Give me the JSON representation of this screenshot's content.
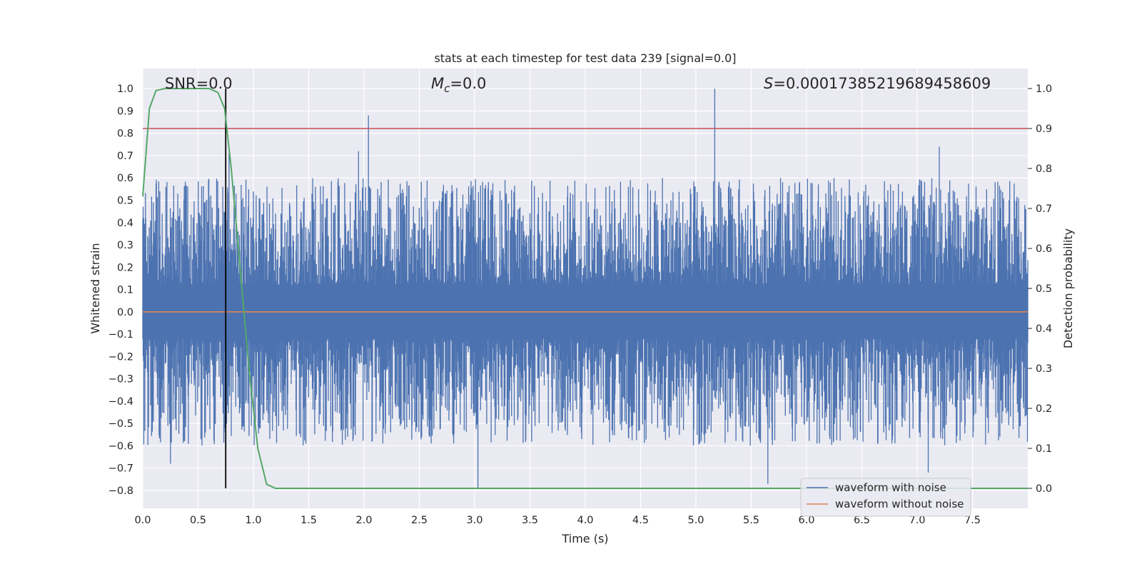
{
  "chart_data": {
    "type": "line",
    "title": "stats at each timestep for test data 239 [signal=0.0]",
    "xlabel": "Time (s)",
    "ylabel_left": "Whitened strain",
    "ylabel_right": "Detection probability",
    "xlim": [
      0.0,
      8.0
    ],
    "ylim_left": [
      -0.88,
      1.09
    ],
    "ylim_right": [
      -0.05,
      1.05
    ],
    "grid": true,
    "x_ticks": [
      "0.0",
      "0.5",
      "1.0",
      "1.5",
      "2.0",
      "2.5",
      "3.0",
      "3.5",
      "4.0",
      "4.5",
      "5.0",
      "5.5",
      "6.0",
      "6.5",
      "7.0",
      "7.5"
    ],
    "y_ticks_left": [
      "1.0",
      "0.9",
      "0.8",
      "0.7",
      "0.6",
      "0.5",
      "0.4",
      "0.3",
      "0.2",
      "0.1",
      "0.0",
      "−0.1",
      "−0.2",
      "−0.3",
      "−0.4",
      "−0.5",
      "−0.6",
      "−0.7",
      "−0.8"
    ],
    "y_ticks_right": [
      "1.0",
      "0.9",
      "0.8",
      "0.7",
      "0.6",
      "0.5",
      "0.4",
      "0.3",
      "0.2",
      "0.1",
      "0.0"
    ],
    "annotations": {
      "snr": "SNR=0.0",
      "mc_symbol": "M",
      "mc_sub": "c",
      "mc_value": "=0.0",
      "s_symbol": "S",
      "s_value": "=0.00017385219689458609"
    },
    "threshold_line": {
      "axis": "right",
      "value": 0.9,
      "color": "#c44e52"
    },
    "marker_line": {
      "x": 0.75,
      "color": "#000000"
    },
    "series": [
      {
        "name": "waveform with noise",
        "axis": "left",
        "color": "#4c72b0",
        "description": "dense noise trace, typical amplitude within about ±0.5 with isolated spikes",
        "notable_peaks": [
          {
            "x": 0.78,
            "y": 0.71
          },
          {
            "x": 1.95,
            "y": 0.72
          },
          {
            "x": 2.04,
            "y": 0.88
          },
          {
            "x": 5.17,
            "y": 1.0
          },
          {
            "x": 7.2,
            "y": 0.74
          },
          {
            "x": 3.03,
            "y": -0.79
          },
          {
            "x": 5.65,
            "y": -0.77
          },
          {
            "x": 7.1,
            "y": -0.72
          },
          {
            "x": 0.25,
            "y": -0.68
          }
        ],
        "amplitude_range": [
          -0.8,
          1.0
        ]
      },
      {
        "name": "waveform without noise",
        "axis": "left",
        "color": "#dd8452",
        "x": [
          0.0,
          8.0
        ],
        "values": [
          0.0,
          0.0
        ]
      },
      {
        "name": "detection probability",
        "axis": "right",
        "color": "#55a868",
        "x": [
          0.0,
          0.06,
          0.12,
          0.2,
          0.3,
          0.45,
          0.6,
          0.68,
          0.74,
          0.8,
          0.88,
          0.96,
          1.04,
          1.12,
          1.2,
          2.0,
          4.0,
          6.0,
          8.0
        ],
        "values": [
          0.73,
          0.95,
          0.995,
          1.0,
          1.0,
          1.0,
          1.0,
          0.99,
          0.95,
          0.8,
          0.55,
          0.3,
          0.1,
          0.01,
          0.0,
          0.0,
          0.0,
          0.0,
          0.0
        ]
      }
    ],
    "legend": {
      "position": "lower-right",
      "entries": [
        {
          "label": "waveform with noise",
          "color": "#4c72b0"
        },
        {
          "label": "waveform without noise",
          "color": "#dd8452"
        }
      ]
    }
  }
}
